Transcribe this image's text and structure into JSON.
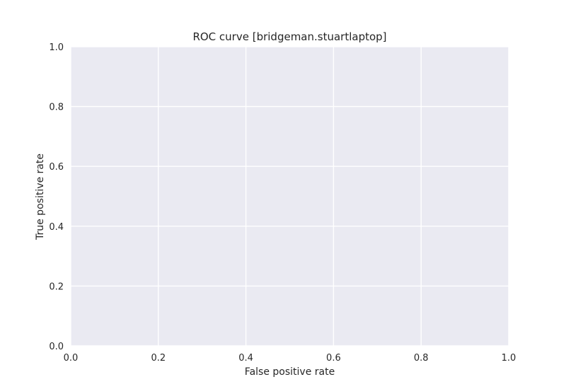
{
  "chart_data": {
    "type": "line",
    "title": "ROC curve [bridgeman.stuartlaptop]",
    "xlabel": "False positive rate",
    "ylabel": "True positive rate",
    "xlim": [
      0.0,
      1.0
    ],
    "ylim": [
      0.0,
      1.0
    ],
    "x_ticks": [
      0.0,
      0.2,
      0.4,
      0.6,
      0.8,
      1.0
    ],
    "y_ticks": [
      0.0,
      0.2,
      0.4,
      0.6,
      0.8,
      1.0
    ],
    "x_tick_labels": [
      "0.0",
      "0.2",
      "0.4",
      "0.6",
      "0.8",
      "1.0"
    ],
    "y_tick_labels": [
      "0.0",
      "0.2",
      "0.4",
      "0.6",
      "0.8",
      "1.0"
    ],
    "series": [],
    "grid": true,
    "style": {
      "plot_background": "#eaeaf2",
      "grid_color": "#ffffff",
      "text_color": "#262626"
    }
  }
}
